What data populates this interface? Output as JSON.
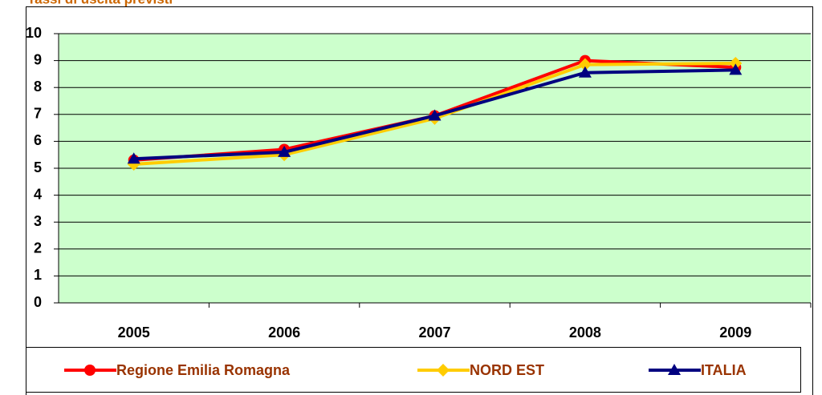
{
  "chart_data": {
    "type": "line",
    "title": "Tassi di uscita previsti",
    "categories": [
      "2005",
      "2006",
      "2007",
      "2008",
      "2009"
    ],
    "series": [
      {
        "name": "Regione Emilia Romagna",
        "color": "#ff0000",
        "marker": "circle",
        "values": [
          5.3,
          5.7,
          6.95,
          9.0,
          8.75
        ]
      },
      {
        "name": "NORD EST",
        "color": "#ffcc00",
        "marker": "diamond",
        "values": [
          5.15,
          5.5,
          6.85,
          8.85,
          8.9
        ]
      },
      {
        "name": "ITALIA",
        "color": "#000080",
        "marker": "triangle",
        "values": [
          5.35,
          5.6,
          6.95,
          8.55,
          8.65
        ]
      }
    ],
    "ylim": [
      0,
      10
    ],
    "yticks": [
      0,
      1,
      2,
      3,
      4,
      5,
      6,
      7,
      8,
      9,
      10
    ],
    "grid": true,
    "legend": "bottom"
  }
}
